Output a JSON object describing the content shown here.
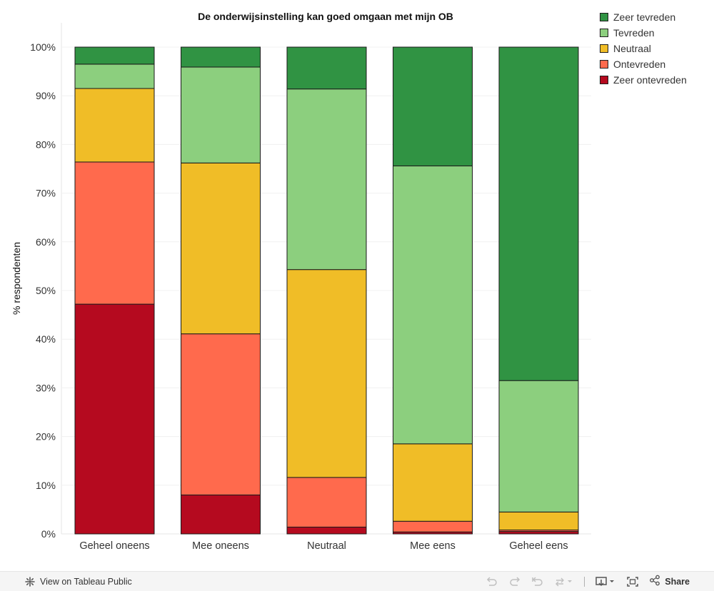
{
  "chart_data": {
    "type": "bar",
    "stacked": true,
    "title": "De onderwijsinstelling kan goed omgaan met mijn OB",
    "xlabel": "",
    "ylabel": "% respondenten",
    "ylim": [
      0,
      100
    ],
    "yticks": [
      "0%",
      "10%",
      "20%",
      "30%",
      "40%",
      "50%",
      "60%",
      "70%",
      "80%",
      "90%",
      "100%"
    ],
    "categories": [
      "Geheel oneens",
      "Mee oneens",
      "Neutraal",
      "Mee eens",
      "Geheel eens"
    ],
    "series": [
      {
        "name": "Zeer ontevreden",
        "color": "#b50a1f",
        "values": [
          47.2,
          8.0,
          1.4,
          0.4,
          0.5
        ]
      },
      {
        "name": "Ontevreden",
        "color": "#ff6a4d",
        "values": [
          29.2,
          33.1,
          10.2,
          2.2,
          0.3
        ]
      },
      {
        "name": "Neutraal",
        "color": "#f0bd27",
        "values": [
          15.1,
          35.1,
          42.7,
          15.9,
          3.7
        ]
      },
      {
        "name": "Tevreden",
        "color": "#8ccf7e",
        "values": [
          5.0,
          19.7,
          37.1,
          57.1,
          27.0
        ]
      },
      {
        "name": "Zeer tevreden",
        "color": "#309343",
        "values": [
          3.5,
          4.1,
          8.6,
          24.4,
          68.5
        ]
      }
    ],
    "legend_position": "top-right",
    "grid": true
  },
  "legend": {
    "items": [
      {
        "label": "Zeer tevreden",
        "color": "#309343"
      },
      {
        "label": "Tevreden",
        "color": "#8ccf7e"
      },
      {
        "label": "Neutraal",
        "color": "#f0bd27"
      },
      {
        "label": "Ontevreden",
        "color": "#ff6a4d"
      },
      {
        "label": "Zeer ontevreden",
        "color": "#b50a1f"
      }
    ]
  },
  "footer": {
    "view_label": "View on Tableau Public",
    "share_label": "Share"
  }
}
